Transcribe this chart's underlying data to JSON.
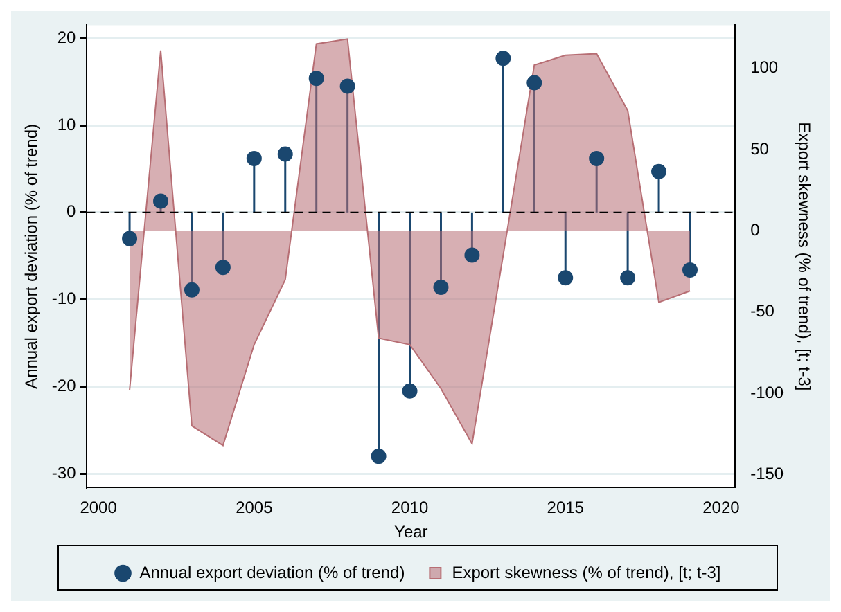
{
  "chart_data": {
    "type": "lollipop",
    "xlabel": "Year",
    "ylabel": "Annual export deviation (% of trend)",
    "y2label": "Export skewness (% of trend), [t; t-3]",
    "x": [
      2001,
      2002,
      2003,
      2004,
      2005,
      2006,
      2007,
      2008,
      2009,
      2010,
      2011,
      2012,
      2013,
      2014,
      2015,
      2016,
      2017,
      2018,
      2019
    ],
    "series": [
      {
        "name": "Annual export deviation (% of trend)",
        "marker": "circle",
        "color": "#1a476f",
        "values": [
          -3,
          1.3,
          -8.9,
          -6.3,
          6.2,
          6.7,
          15.4,
          14.5,
          -28,
          -20.5,
          -8.6,
          -4.9,
          17.7,
          14.9,
          -7.5,
          6.2,
          -7.5,
          4.7,
          -6.6
        ]
      },
      {
        "name": "Export skewness (% of trend), [t; t-3]",
        "type": "area",
        "axis": "y2",
        "color": "#b76e74",
        "values": [
          -98,
          111,
          -120,
          -132,
          -70,
          -30,
          115,
          118,
          -66,
          -70,
          -97,
          -131,
          -15,
          102,
          108,
          109,
          74,
          -44,
          -37
        ]
      }
    ],
    "xlim": [
      1999.63,
      2020.45
    ],
    "xticks": [
      2000,
      2005,
      2010,
      2015,
      2020
    ],
    "ylim": [
      -31.6,
      21.5
    ],
    "yticks": [
      -30,
      -20,
      -10,
      0,
      10,
      20
    ],
    "y2lim": [
      -158,
      126.5
    ],
    "y2ticks": [
      -150,
      -100,
      -50,
      0,
      50,
      100
    ],
    "ref_lines": [
      {
        "axis": "y",
        "value": 0,
        "line_style": "dashed",
        "color": "#000000"
      }
    ],
    "grid": "y",
    "legend": "bottom"
  }
}
